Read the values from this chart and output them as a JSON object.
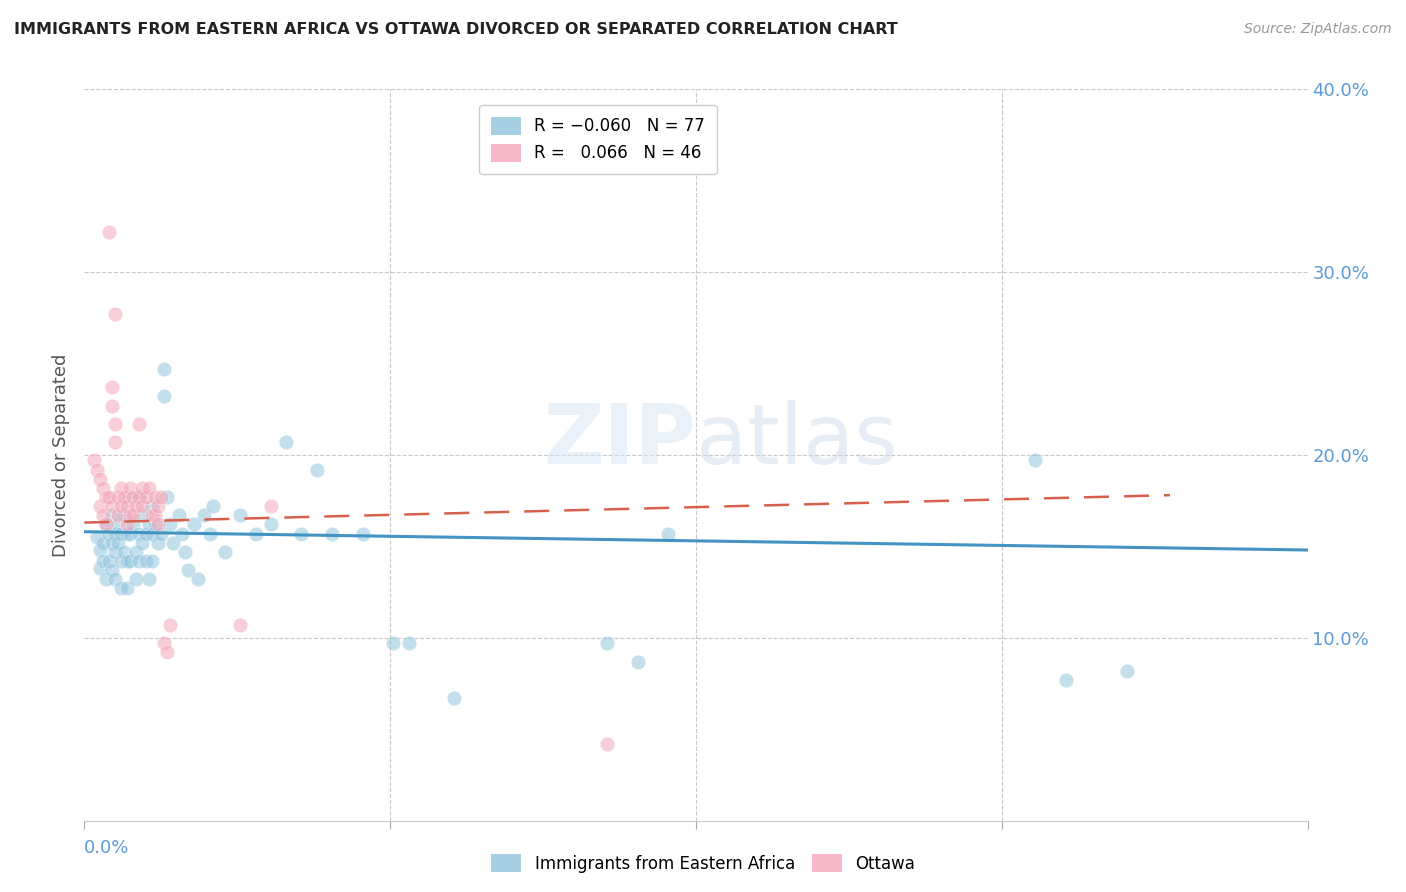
{
  "title": "IMMIGRANTS FROM EASTERN AFRICA VS OTTAWA DIVORCED OR SEPARATED CORRELATION CHART",
  "source": "Source: ZipAtlas.com",
  "ylabel": "Divorced or Separated",
  "watermark": "ZIPatlas",
  "legend_labels_bottom": [
    "Immigrants from Eastern Africa",
    "Ottawa"
  ],
  "xlim": [
    0.0,
    0.4
  ],
  "ylim": [
    0.0,
    0.4
  ],
  "yticks": [
    0.1,
    0.2,
    0.3,
    0.4
  ],
  "blue_color": "#92C5DE",
  "pink_color": "#F4A6B8",
  "blue_line_color": "#4393C3",
  "pink_line_color": "#D6604D",
  "axis_label_color": "#5B9BD5",
  "grid_color": "#C8C8C8",
  "blue_scatter": [
    [
      0.004,
      0.155
    ],
    [
      0.005,
      0.148
    ],
    [
      0.005,
      0.138
    ],
    [
      0.006,
      0.152
    ],
    [
      0.006,
      0.142
    ],
    [
      0.007,
      0.162
    ],
    [
      0.007,
      0.132
    ],
    [
      0.008,
      0.157
    ],
    [
      0.008,
      0.142
    ],
    [
      0.009,
      0.167
    ],
    [
      0.009,
      0.152
    ],
    [
      0.009,
      0.137
    ],
    [
      0.01,
      0.157
    ],
    [
      0.01,
      0.147
    ],
    [
      0.01,
      0.132
    ],
    [
      0.011,
      0.162
    ],
    [
      0.011,
      0.152
    ],
    [
      0.012,
      0.157
    ],
    [
      0.012,
      0.142
    ],
    [
      0.012,
      0.127
    ],
    [
      0.013,
      0.167
    ],
    [
      0.013,
      0.147
    ],
    [
      0.014,
      0.157
    ],
    [
      0.014,
      0.142
    ],
    [
      0.014,
      0.127
    ],
    [
      0.015,
      0.177
    ],
    [
      0.015,
      0.157
    ],
    [
      0.015,
      0.142
    ],
    [
      0.016,
      0.162
    ],
    [
      0.017,
      0.147
    ],
    [
      0.017,
      0.132
    ],
    [
      0.018,
      0.177
    ],
    [
      0.018,
      0.157
    ],
    [
      0.018,
      0.142
    ],
    [
      0.019,
      0.167
    ],
    [
      0.019,
      0.152
    ],
    [
      0.02,
      0.157
    ],
    [
      0.02,
      0.142
    ],
    [
      0.021,
      0.162
    ],
    [
      0.021,
      0.132
    ],
    [
      0.022,
      0.172
    ],
    [
      0.022,
      0.157
    ],
    [
      0.022,
      0.142
    ],
    [
      0.023,
      0.162
    ],
    [
      0.024,
      0.152
    ],
    [
      0.025,
      0.157
    ],
    [
      0.026,
      0.247
    ],
    [
      0.026,
      0.232
    ],
    [
      0.027,
      0.177
    ],
    [
      0.028,
      0.162
    ],
    [
      0.029,
      0.152
    ],
    [
      0.031,
      0.167
    ],
    [
      0.032,
      0.157
    ],
    [
      0.033,
      0.147
    ],
    [
      0.034,
      0.137
    ],
    [
      0.036,
      0.162
    ],
    [
      0.037,
      0.132
    ],
    [
      0.039,
      0.167
    ],
    [
      0.041,
      0.157
    ],
    [
      0.042,
      0.172
    ],
    [
      0.046,
      0.147
    ],
    [
      0.051,
      0.167
    ],
    [
      0.056,
      0.157
    ],
    [
      0.061,
      0.162
    ],
    [
      0.066,
      0.207
    ],
    [
      0.071,
      0.157
    ],
    [
      0.076,
      0.192
    ],
    [
      0.081,
      0.157
    ],
    [
      0.091,
      0.157
    ],
    [
      0.101,
      0.097
    ],
    [
      0.106,
      0.097
    ],
    [
      0.121,
      0.067
    ],
    [
      0.171,
      0.097
    ],
    [
      0.181,
      0.087
    ],
    [
      0.191,
      0.157
    ],
    [
      0.311,
      0.197
    ],
    [
      0.321,
      0.077
    ],
    [
      0.341,
      0.082
    ]
  ],
  "pink_scatter": [
    [
      0.003,
      0.197
    ],
    [
      0.004,
      0.192
    ],
    [
      0.005,
      0.187
    ],
    [
      0.005,
      0.172
    ],
    [
      0.006,
      0.182
    ],
    [
      0.006,
      0.167
    ],
    [
      0.007,
      0.177
    ],
    [
      0.007,
      0.162
    ],
    [
      0.008,
      0.322
    ],
    [
      0.008,
      0.177
    ],
    [
      0.009,
      0.172
    ],
    [
      0.009,
      0.237
    ],
    [
      0.009,
      0.227
    ],
    [
      0.01,
      0.277
    ],
    [
      0.01,
      0.217
    ],
    [
      0.01,
      0.207
    ],
    [
      0.011,
      0.177
    ],
    [
      0.011,
      0.167
    ],
    [
      0.012,
      0.182
    ],
    [
      0.012,
      0.172
    ],
    [
      0.013,
      0.177
    ],
    [
      0.014,
      0.172
    ],
    [
      0.014,
      0.162
    ],
    [
      0.015,
      0.182
    ],
    [
      0.015,
      0.167
    ],
    [
      0.016,
      0.177
    ],
    [
      0.016,
      0.167
    ],
    [
      0.017,
      0.172
    ],
    [
      0.018,
      0.217
    ],
    [
      0.018,
      0.177
    ],
    [
      0.019,
      0.182
    ],
    [
      0.019,
      0.172
    ],
    [
      0.02,
      0.177
    ],
    [
      0.021,
      0.182
    ],
    [
      0.022,
      0.167
    ],
    [
      0.023,
      0.177
    ],
    [
      0.023,
      0.167
    ],
    [
      0.024,
      0.172
    ],
    [
      0.024,
      0.162
    ],
    [
      0.025,
      0.177
    ],
    [
      0.026,
      0.097
    ],
    [
      0.027,
      0.092
    ],
    [
      0.028,
      0.107
    ],
    [
      0.051,
      0.107
    ],
    [
      0.061,
      0.172
    ],
    [
      0.171,
      0.042
    ]
  ],
  "blue_trend_x": [
    0.0,
    0.4
  ],
  "blue_trend_y": [
    0.158,
    0.148
  ],
  "pink_trend_x": [
    0.0,
    0.355
  ],
  "pink_trend_y": [
    0.163,
    0.178
  ]
}
